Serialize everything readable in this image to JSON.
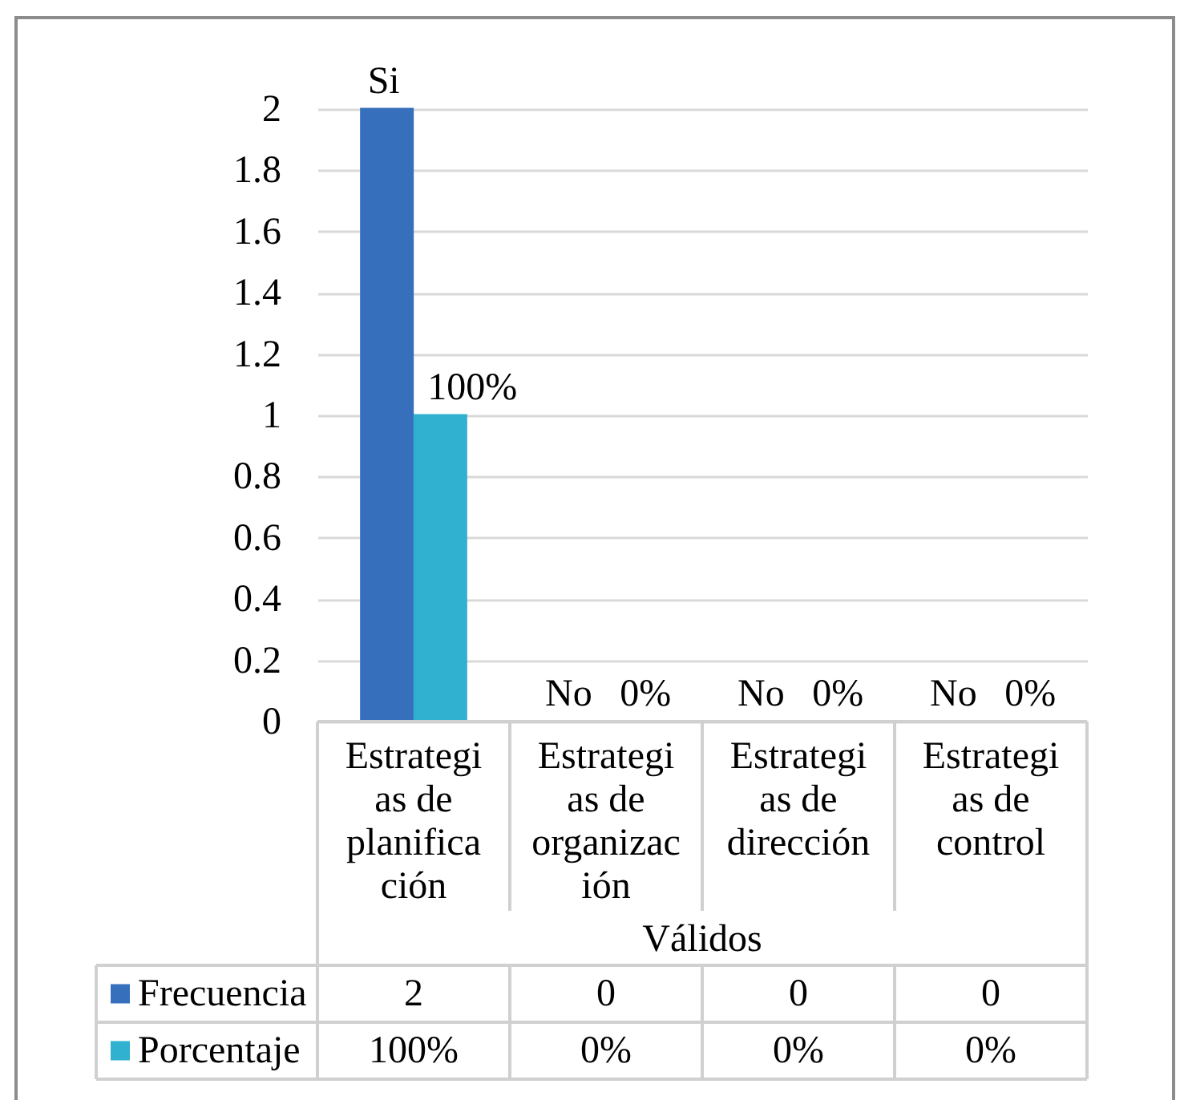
{
  "chart_data": {
    "type": "bar",
    "categories": [
      "Estrategias de planificación",
      "Estrategias de organización",
      "Estrategias de dirección",
      "Estrategias de control"
    ],
    "series": [
      {
        "name": "Frecuencia",
        "color": "#3670bd",
        "values": [
          2,
          0,
          0,
          0
        ],
        "value_labels": [
          "2",
          "0",
          "0",
          "0"
        ]
      },
      {
        "name": "Porcentaje",
        "color": "#2fb1cf",
        "values": [
          1,
          0,
          0,
          0
        ],
        "value_labels": [
          "100%",
          "0%",
          "0%",
          "0%"
        ]
      }
    ],
    "xlabel": "Válidos",
    "ylim": [
      0,
      2
    ],
    "yticks": [
      0,
      0.2,
      0.4,
      0.6,
      0.8,
      1,
      1.2,
      1.4,
      1.6,
      1.8,
      2
    ],
    "grid": "y",
    "legend": "bottom left",
    "annotations": [
      {
        "text": "Si",
        "x": "Estrategias de planificación",
        "y": 2
      },
      {
        "text": "100%",
        "x": "Estrategias de planificación",
        "y": 1
      },
      {
        "text": "No",
        "x": "Estrategias de organización",
        "y": 0
      },
      {
        "text": "0%",
        "x": "Estrategias de organización",
        "y": 0
      },
      {
        "text": "No",
        "x": "Estrategias de dirección",
        "y": 0
      },
      {
        "text": "0%",
        "x": "Estrategias de dirección",
        "y": 0
      },
      {
        "text": "No",
        "x": "Estrategias de control",
        "y": 0
      },
      {
        "text": "0%",
        "x": "Estrategias de control",
        "y": 0
      }
    ]
  }
}
